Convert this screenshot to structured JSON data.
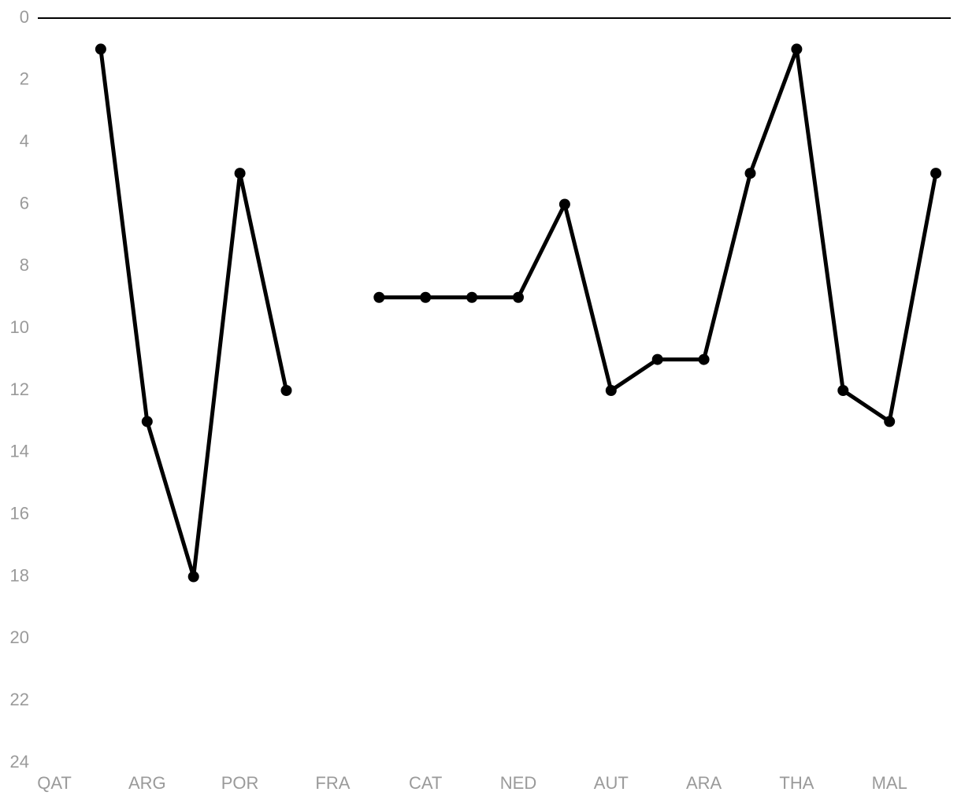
{
  "chart_data": {
    "type": "line",
    "categories": [
      "QAT",
      null,
      "ARG",
      null,
      "POR",
      null,
      "FRA",
      null,
      "CAT",
      null,
      "NED",
      null,
      "AUT",
      null,
      "ARA",
      null,
      "THA",
      null,
      "MAL",
      null
    ],
    "values": [
      null,
      1,
      13,
      18,
      5,
      12,
      null,
      9,
      9,
      9,
      9,
      6,
      12,
      11,
      11,
      5,
      1,
      12,
      13,
      5
    ],
    "color": "#000000",
    "ylim": [
      0,
      24
    ],
    "yticks": [
      0,
      2,
      4,
      6,
      8,
      10,
      12,
      14,
      16,
      18,
      20,
      22,
      24
    ],
    "y_inverted": true,
    "grid": false
  }
}
